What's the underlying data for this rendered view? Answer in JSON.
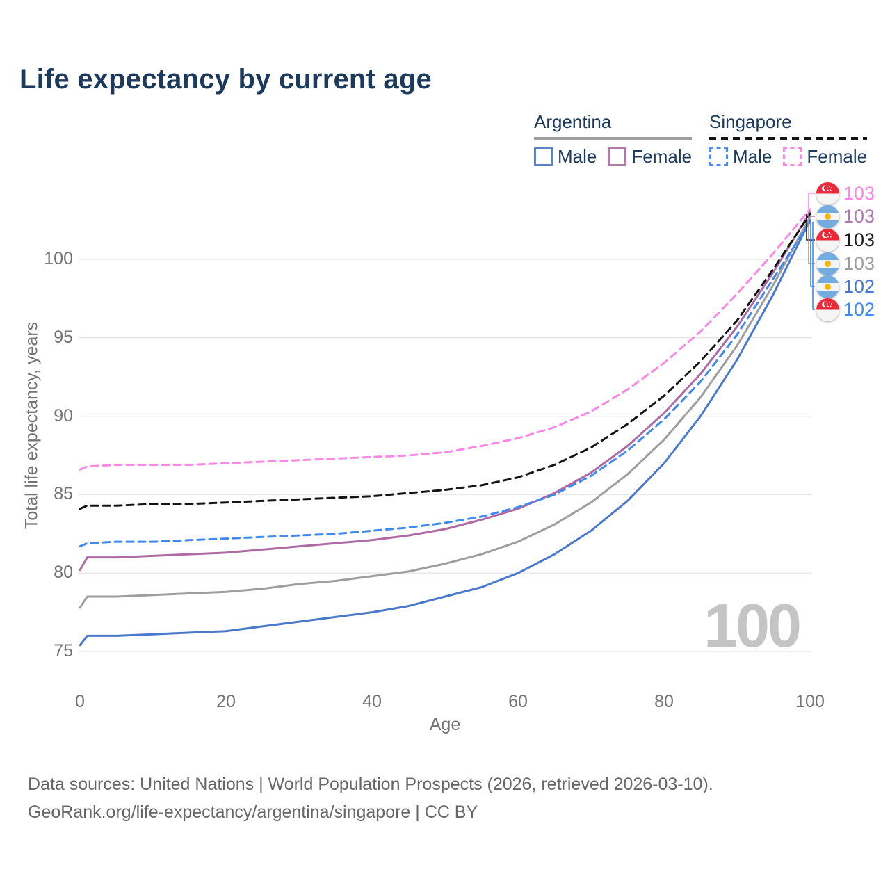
{
  "title": "Life expectancy by current age",
  "legend": {
    "argentina": {
      "label": "Argentina",
      "male": "Male",
      "female": "Female"
    },
    "singapore": {
      "label": "Singapore",
      "male": "Male",
      "female": "Female"
    }
  },
  "axes": {
    "x_title": "Age",
    "y_title": "Total life expectancy, years",
    "x_ticks": [
      "0",
      "20",
      "40",
      "60",
      "80",
      "100"
    ],
    "y_ticks": [
      "75",
      "80",
      "85",
      "90",
      "95",
      "100"
    ]
  },
  "watermark": "100",
  "footer": {
    "line1": "Data sources: United Nations | World Population Prospects (2026, retrieved 2026-03-10).",
    "line2": "GeoRank.org/life-expectancy/argentina/singapore | CC BY"
  },
  "colors": {
    "title_text": "#1b3a5c",
    "axis_text": "#737373",
    "gridline": "#e8e8e8",
    "argentina_male": "#4a79cc",
    "argentina_female": "#ad6aa5",
    "argentina_all": "#9e9e9e",
    "singapore_male": "#3f8af0",
    "singapore_all": "#141414",
    "singapore_female": "#fb87e7",
    "argentina_flag_blue": "#74acdf",
    "argentina_flag_sun": "#f6b40e",
    "singapore_flag_red": "#ed2939"
  },
  "chart_data": {
    "type": "line",
    "title": "Life expectancy by current age",
    "xlabel": "Age",
    "ylabel": "Total life expectancy, years",
    "xlim": [
      0,
      100
    ],
    "ylim": [
      74,
      104
    ],
    "grid": "horizontal",
    "legend_position": "top-right",
    "x": [
      0,
      1,
      5,
      10,
      15,
      20,
      25,
      30,
      35,
      40,
      45,
      50,
      55,
      60,
      65,
      70,
      75,
      80,
      85,
      90,
      95,
      100
    ],
    "series": [
      {
        "name": "Argentina All",
        "country": "argentina",
        "sex": "all",
        "color": "#9e9e9e",
        "dash": "none",
        "values": [
          77.8,
          78.5,
          78.5,
          78.6,
          78.7,
          78.8,
          79.0,
          79.3,
          79.5,
          79.8,
          80.1,
          80.6,
          81.2,
          82.0,
          83.1,
          84.5,
          86.3,
          88.5,
          91.2,
          94.5,
          98.4,
          102.7
        ]
      },
      {
        "name": "Argentina Female",
        "country": "argentina",
        "sex": "female",
        "color": "#ad6aa5",
        "dash": "none",
        "values": [
          80.2,
          81.0,
          81.0,
          81.1,
          81.2,
          81.3,
          81.5,
          81.7,
          81.9,
          82.1,
          82.4,
          82.8,
          83.4,
          84.1,
          85.1,
          86.4,
          88.1,
          90.2,
          92.7,
          95.7,
          99.2,
          103.0
        ]
      },
      {
        "name": "Argentina Male",
        "country": "argentina",
        "sex": "male",
        "color": "#4a79cc",
        "dash": "none",
        "values": [
          75.4,
          76.0,
          76.0,
          76.1,
          76.2,
          76.3,
          76.6,
          76.9,
          77.2,
          77.5,
          77.9,
          78.5,
          79.1,
          80.0,
          81.2,
          82.7,
          84.6,
          87.0,
          90.0,
          93.6,
          97.8,
          102.5
        ]
      },
      {
        "name": "Singapore All",
        "country": "singapore",
        "sex": "all",
        "color": "#141414",
        "dash": "10 7",
        "values": [
          84.1,
          84.3,
          84.3,
          84.4,
          84.4,
          84.5,
          84.6,
          84.7,
          84.8,
          84.9,
          85.1,
          85.3,
          85.6,
          86.1,
          86.9,
          88.0,
          89.5,
          91.3,
          93.5,
          96.1,
          99.4,
          102.9
        ]
      },
      {
        "name": "Singapore Male",
        "country": "singapore",
        "sex": "male",
        "color": "#3f8af0",
        "dash": "10 7",
        "values": [
          81.7,
          81.9,
          82.0,
          82.0,
          82.1,
          82.2,
          82.3,
          82.4,
          82.5,
          82.7,
          82.9,
          83.2,
          83.6,
          84.2,
          85.0,
          86.2,
          87.8,
          89.8,
          92.2,
          95.2,
          98.8,
          102.4
        ]
      },
      {
        "name": "Singapore Female",
        "country": "singapore",
        "sex": "female",
        "color": "#fb87e7",
        "dash": "10 7",
        "values": [
          86.6,
          86.8,
          86.9,
          86.9,
          86.9,
          87.0,
          87.1,
          87.2,
          87.3,
          87.4,
          87.5,
          87.7,
          88.1,
          88.6,
          89.3,
          90.3,
          91.7,
          93.4,
          95.4,
          97.8,
          100.4,
          103.2
        ]
      }
    ],
    "end_labels": [
      {
        "country": "singapore",
        "sex": "female",
        "value": "103",
        "color": "#fb87e7"
      },
      {
        "country": "argentina",
        "sex": "female",
        "value": "103",
        "color": "#b07ab0"
      },
      {
        "country": "singapore",
        "sex": "all",
        "value": "103",
        "color": "#1a1a1a"
      },
      {
        "country": "argentina",
        "sex": "all",
        "value": "103",
        "color": "#9e9e9e"
      },
      {
        "country": "argentina",
        "sex": "male",
        "value": "102",
        "color": "#4a79cc"
      },
      {
        "country": "singapore",
        "sex": "male",
        "value": "102",
        "color": "#3f8af0"
      }
    ]
  }
}
